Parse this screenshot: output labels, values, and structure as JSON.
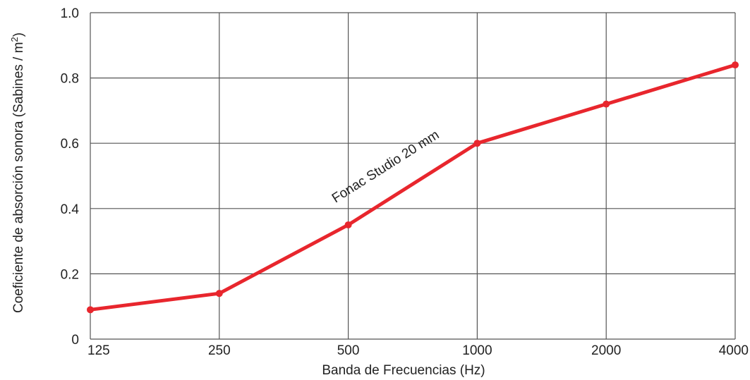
{
  "chart_data": {
    "type": "line",
    "title": "",
    "categories": [
      "125",
      "250",
      "500",
      "1000",
      "2000",
      "4000"
    ],
    "series": [
      {
        "name": "Fonac Studio 20 mm",
        "values": [
          0.09,
          0.14,
          0.35,
          0.6,
          0.72,
          0.84
        ],
        "color": "#e8262d"
      }
    ],
    "y_ticks": [
      "0",
      "0.2",
      "0.4",
      "0.6",
      "0.8",
      "1.0"
    ],
    "ylim": [
      0,
      1.0
    ],
    "xlabel": "Banda de Frecuencias (Hz)",
    "ylabel_main": "Coeficiente de absorción sonora (Sabines / m",
    "ylabel_sup": "2",
    "ylabel_end": ")",
    "grid": true,
    "grid_color": "#555555"
  }
}
